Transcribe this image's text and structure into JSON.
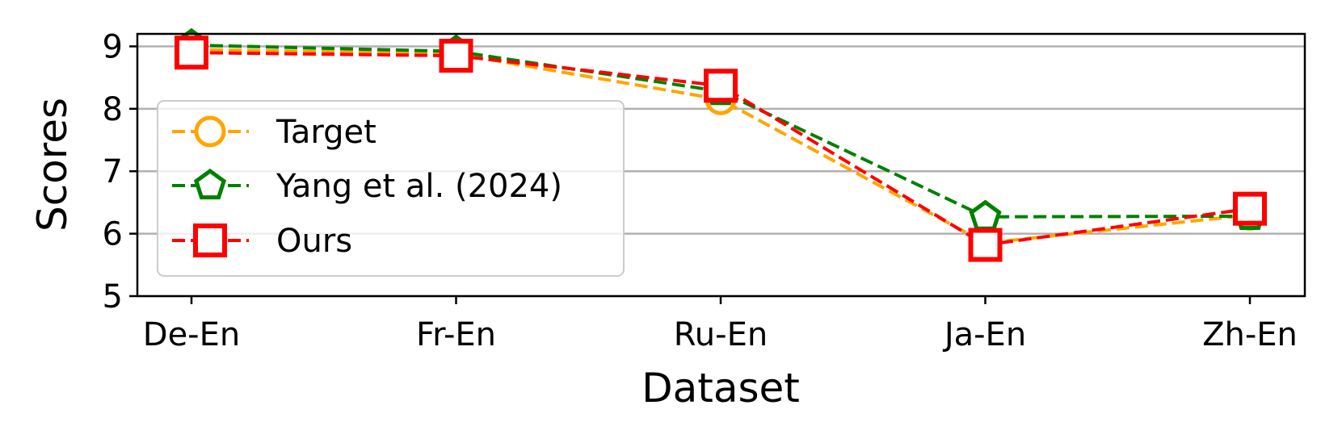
{
  "chart_data": {
    "type": "line",
    "title": "",
    "xlabel": "Dataset",
    "ylabel": "Scores",
    "categories": [
      "De-En",
      "Fr-En",
      "Ru-En",
      "Ja-En",
      "Zh-En"
    ],
    "ylim": [
      5,
      9.2
    ],
    "yticks": [
      5,
      6,
      7,
      8,
      9
    ],
    "grid": "horizontal",
    "legend_position": "center-left",
    "series": [
      {
        "name": "Target",
        "values": [
          8.95,
          8.88,
          8.15,
          5.85,
          6.3
        ],
        "color": "#FFA500",
        "marker": "circle",
        "linestyle": "dashed"
      },
      {
        "name": "Yang et al. (2024)",
        "values": [
          9.02,
          8.92,
          8.28,
          6.27,
          6.28
        ],
        "color": "#008000",
        "marker": "pentagon",
        "linestyle": "dashed"
      },
      {
        "name": "Ours",
        "values": [
          8.9,
          8.85,
          8.37,
          5.82,
          6.4
        ],
        "color": "#FF0000",
        "marker": "square",
        "linestyle": "dashed"
      }
    ]
  }
}
